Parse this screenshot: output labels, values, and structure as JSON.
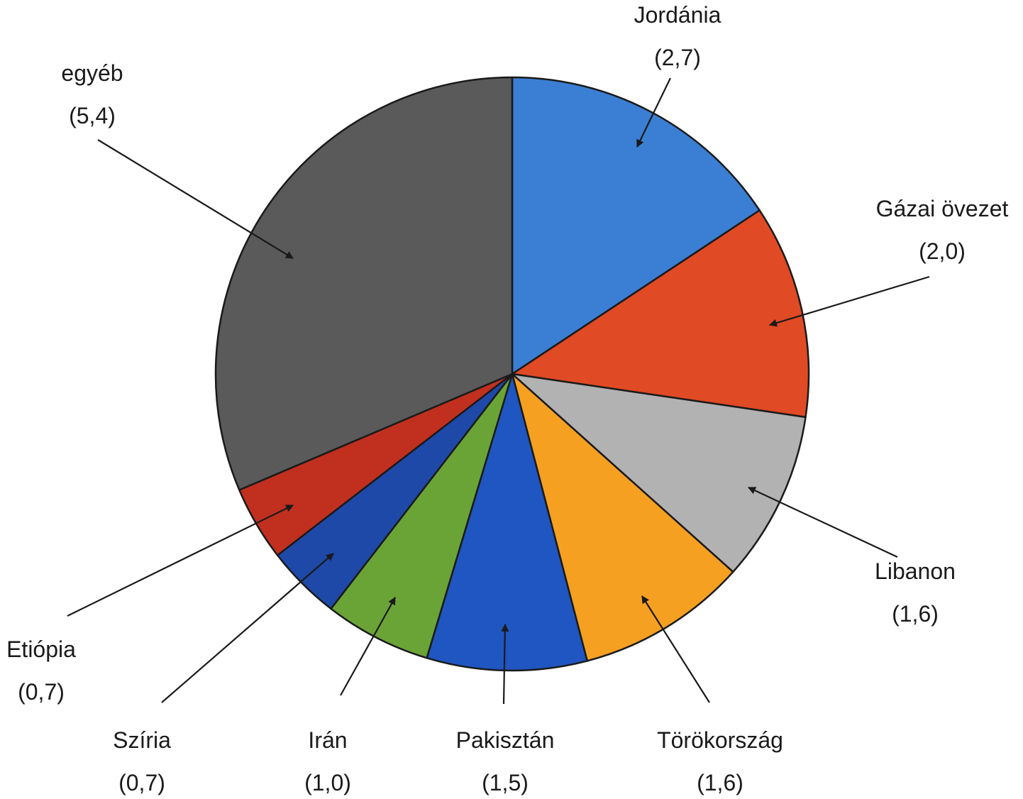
{
  "chart_data": {
    "type": "pie",
    "title": "",
    "direction": "clockwise",
    "start": "top",
    "slices": [
      {
        "label": "Jordánia",
        "value": 2.7,
        "value_label": "(2,7)",
        "color": "#3b7fd4"
      },
      {
        "label": "Gázai övezet",
        "value": 2.0,
        "value_label": "(2,0)",
        "color": "#e04a24"
      },
      {
        "label": "Libanon",
        "value": 1.6,
        "value_label": "(1,6)",
        "color": "#b2b2b2"
      },
      {
        "label": "Törökország",
        "value": 1.6,
        "value_label": "(1,6)",
        "color": "#f6a021"
      },
      {
        "label": "Pakisztán",
        "value": 1.5,
        "value_label": "(1,5)",
        "color": "#1f56c1"
      },
      {
        "label": "Irán",
        "value": 1.0,
        "value_label": "(1,0)",
        "color": "#6aa436"
      },
      {
        "label": "Szíria",
        "value": 0.7,
        "value_label": "(0,7)",
        "color": "#1e49a8"
      },
      {
        "label": "Etiópia",
        "value": 0.7,
        "value_label": "(0,7)",
        "color": "#c1301f"
      },
      {
        "label": "egyéb",
        "value": 5.4,
        "value_label": "(5,4)",
        "color": "#5a5a5a"
      }
    ]
  }
}
